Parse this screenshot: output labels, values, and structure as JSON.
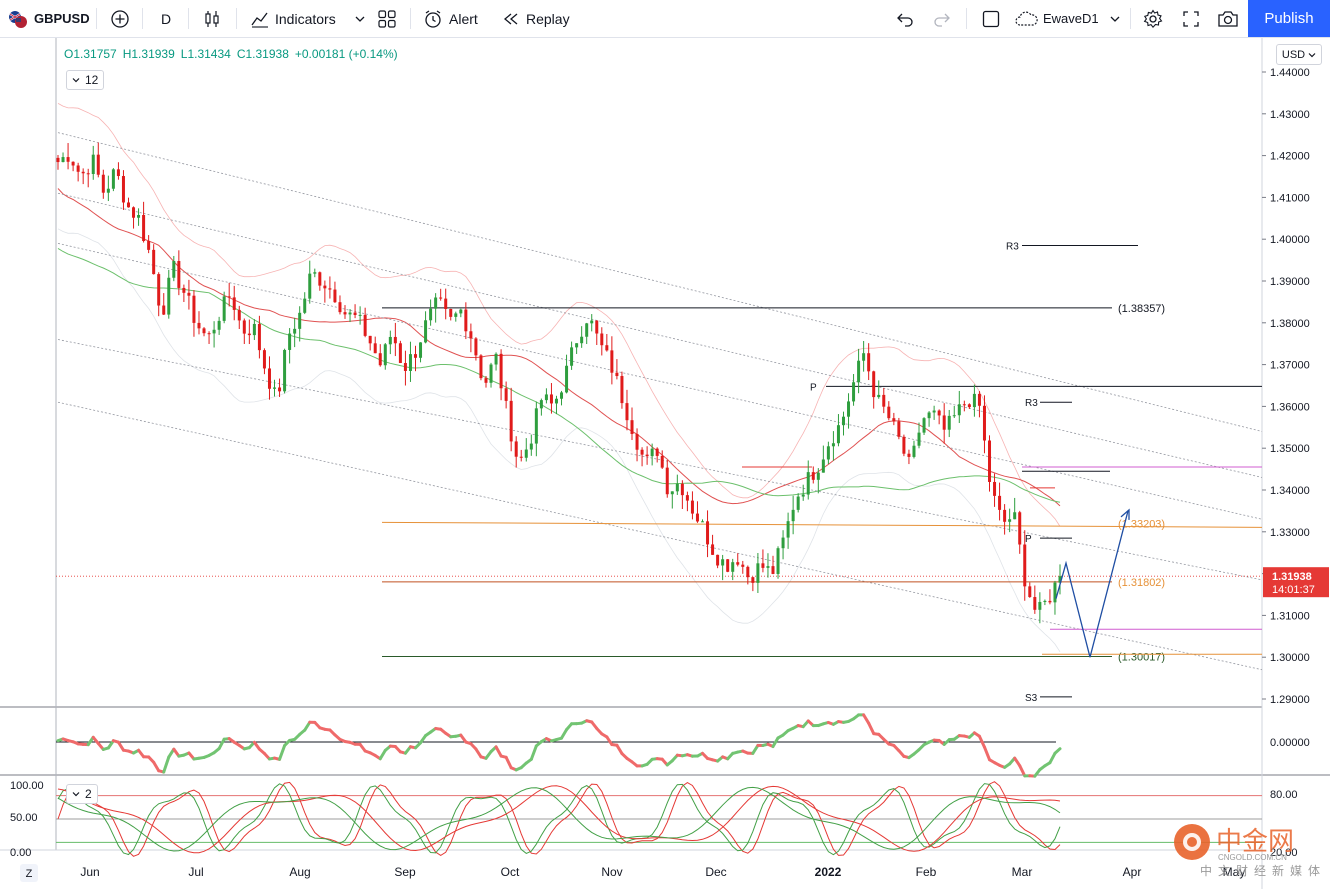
{
  "toolbar": {
    "symbol": "GBPUSD",
    "interval": "D",
    "indicators_label": "Indicators",
    "alert_label": "Alert",
    "replay_label": "Replay",
    "layout_name": "EwaveD1",
    "publish_label": "Publish"
  },
  "legend": {
    "open": "O1.31757",
    "high": "H1.31939",
    "low": "L1.31434",
    "close": "C1.31938",
    "change": "+0.00181 (+0.14%)",
    "badge_main": "12",
    "badge_stoch": "2"
  },
  "price_axis": {
    "currency": "USD",
    "ticks": [
      "1.44000",
      "1.43000",
      "1.42000",
      "1.41000",
      "1.40000",
      "1.39000",
      "1.38000",
      "1.37000",
      "1.36000",
      "1.35000",
      "1.34000",
      "1.33000",
      "1.32000",
      "1.31000",
      "1.30000",
      "1.29000"
    ],
    "last_price": "1.31938",
    "countdown": "14:01:37",
    "osc_tick": "0.00000",
    "stoch_right_ticks": [
      "80.00",
      "20.00"
    ],
    "stoch_left_ticks": [
      "100.00",
      "50.00",
      "0.00"
    ]
  },
  "time_axis": {
    "months": [
      "Jun",
      "Jul",
      "Aug",
      "Sep",
      "Oct",
      "Nov",
      "Dec",
      "2022",
      "Feb",
      "Mar",
      "Apr",
      "May"
    ],
    "tz_label": "Z"
  },
  "annotations": {
    "fib_high": "(1.38357)",
    "fib_mid": "(1.33203)",
    "fib_low": "(1.31802)",
    "fib_bottom": "(1.30017)",
    "pivot_r3_a": "R3",
    "pivot_r3_b": "R3",
    "pivot_s3": "S3",
    "pivot_p_a": "P",
    "pivot_p_b": "P"
  },
  "colors": {
    "up": "#089981",
    "down": "#e53935",
    "candle_up": "#2e9e3e",
    "candle_down": "#e01b1b",
    "fib": "#e69138",
    "magenta": "#d05cd0",
    "wave": "#1f4ea3"
  },
  "chart_data": {
    "type": "candlestick",
    "symbol": "GBPUSD",
    "interval": "D",
    "ylim": [
      1.285,
      1.445
    ],
    "x": [
      "Jun",
      "Jul",
      "Aug",
      "Sep",
      "Oct",
      "Nov",
      "Dec",
      "2022",
      "Feb",
      "Mar",
      "Apr",
      "May"
    ],
    "close_path": [
      1.4185,
      1.4205,
      1.415,
      1.419,
      1.411,
      1.4165,
      1.408,
      1.405,
      1.396,
      1.382,
      1.393,
      1.387,
      1.38,
      1.376,
      1.382,
      1.387,
      1.378,
      1.379,
      1.369,
      1.361,
      1.377,
      1.382,
      1.392,
      1.39,
      1.387,
      1.382,
      1.381,
      1.376,
      1.37,
      1.378,
      1.369,
      1.373,
      1.38,
      1.385,
      1.38,
      1.383,
      1.376,
      1.365,
      1.372,
      1.358,
      1.346,
      1.352,
      1.362,
      1.36,
      1.367,
      1.376,
      1.382,
      1.375,
      1.37,
      1.362,
      1.354,
      1.346,
      1.35,
      1.34,
      1.342,
      1.336,
      1.331,
      1.325,
      1.322,
      1.324,
      1.319,
      1.322,
      1.32,
      1.328,
      1.338,
      1.342,
      1.346,
      1.352,
      1.356,
      1.365,
      1.373,
      1.362,
      1.358,
      1.352,
      1.345,
      1.357,
      1.358,
      1.354,
      1.358,
      1.362,
      1.36,
      1.34,
      1.332,
      1.334,
      1.318,
      1.31,
      1.314,
      1.3194
    ],
    "reference_levels": [
      1.38357,
      1.33203,
      1.31802,
      1.30017
    ],
    "projection": [
      {
        "from": [
          1.3105,
          1.3225
        ],
        "label": "wave up"
      },
      {
        "label": "wave down",
        "target": 1.3
      },
      {
        "label": "wave up",
        "target": 1.336
      }
    ],
    "oscillator_level": 0.0,
    "stochastic_levels": [
      80,
      20
    ]
  }
}
